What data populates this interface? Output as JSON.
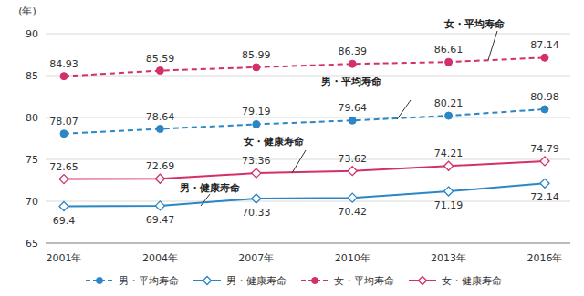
{
  "chart_data": {
    "type": "line",
    "y_label": "(年)",
    "categories": [
      "2001年",
      "2004年",
      "2007年",
      "2010年",
      "2013年",
      "2016年"
    ],
    "series": [
      {
        "name": "男・平均寿命",
        "color": "#2b86c5",
        "marker": "circle",
        "line_style": "dashed",
        "values": [
          78.07,
          78.64,
          79.19,
          79.64,
          80.21,
          80.98
        ]
      },
      {
        "name": "男・健康寿命",
        "color": "#2b86c5",
        "marker": "diamond",
        "line_style": "solid",
        "values": [
          69.4,
          69.47,
          70.33,
          70.42,
          71.19,
          72.14
        ]
      },
      {
        "name": "女・平均寿命",
        "color": "#d3306b",
        "marker": "circle",
        "line_style": "dashed",
        "values": [
          84.93,
          85.59,
          85.99,
          86.39,
          86.61,
          87.14
        ]
      },
      {
        "name": "女・健康寿命",
        "color": "#d3306b",
        "marker": "diamond",
        "line_style": "solid",
        "values": [
          72.65,
          72.69,
          73.36,
          73.62,
          74.21,
          74.79
        ]
      }
    ],
    "ylim": [
      65,
      90
    ],
    "yticks": [
      65,
      70,
      75,
      80,
      85,
      90
    ],
    "grid": true,
    "legend": "bottom",
    "data_labels": true
  }
}
